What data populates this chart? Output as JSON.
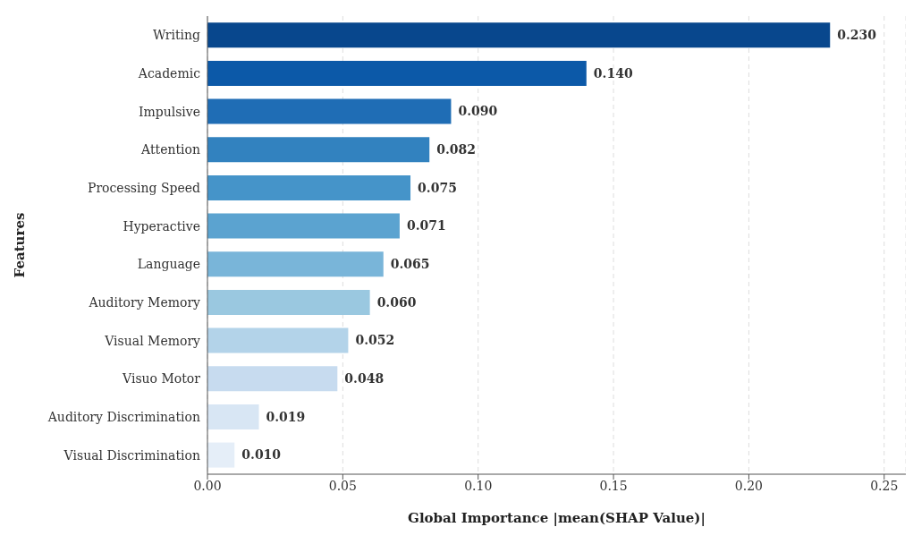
{
  "chart_data": {
    "type": "bar",
    "orientation": "horizontal",
    "xlabel": "Global Importance |mean(SHAP Value)|",
    "ylabel": "Features",
    "categories": [
      "Writing",
      "Academic",
      "Impulsive",
      "Attention",
      "Processing Speed",
      "Hyperactive",
      "Language",
      "Auditory Memory",
      "Visual Memory",
      "Visuo Motor",
      "Auditory Discrimination",
      "Visual Discrimination"
    ],
    "values": [
      0.23,
      0.14,
      0.09,
      0.082,
      0.075,
      0.071,
      0.065,
      0.06,
      0.052,
      0.048,
      0.019,
      0.01
    ],
    "value_labels": [
      "0.230",
      "0.140",
      "0.090",
      "0.082",
      "0.075",
      "0.071",
      "0.065",
      "0.060",
      "0.052",
      "0.048",
      "0.019",
      "0.010"
    ],
    "colors": [
      "#08478d",
      "#0c59a8",
      "#1f6db5",
      "#3282bf",
      "#4594c9",
      "#5ba3d0",
      "#79b5d9",
      "#9ac8e0",
      "#b3d3e9",
      "#c7dbef",
      "#d8e6f4",
      "#e5eef8"
    ],
    "xlim": [
      0,
      0.258
    ],
    "xticks": [
      {
        "value": 0,
        "label": "0.00"
      },
      {
        "value": 0.05,
        "label": "0.05"
      },
      {
        "value": 0.1,
        "label": "0.10"
      },
      {
        "value": 0.15,
        "label": "0.15"
      },
      {
        "value": 0.2,
        "label": "0.20"
      },
      {
        "value": 0.25,
        "label": "0.25"
      }
    ],
    "grid": "x"
  }
}
